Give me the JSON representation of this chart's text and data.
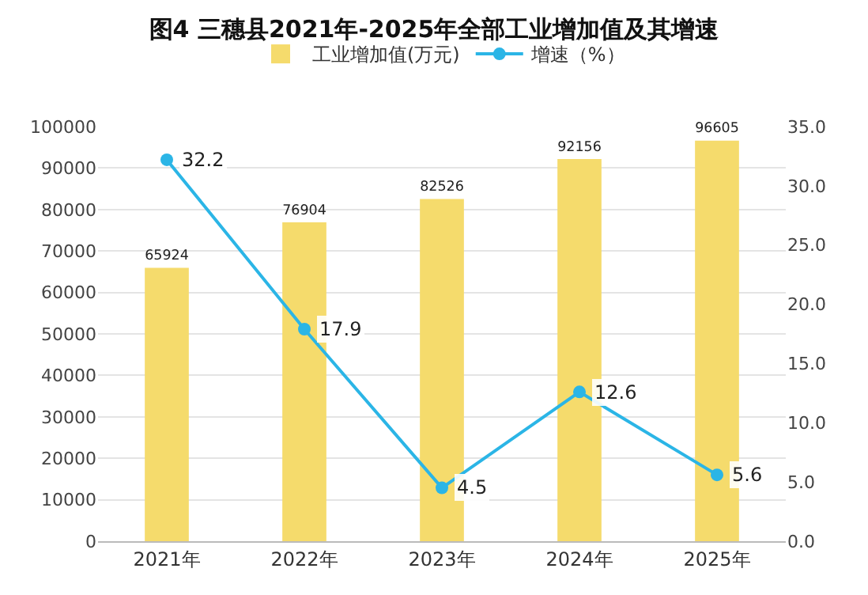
{
  "chart_data": {
    "type": "bar",
    "title": "图4 三穗县2021年-2025年全部工业增加值及其增速",
    "categories": [
      "2021年",
      "2022年",
      "2023年",
      "2024年",
      "2025年"
    ],
    "series": [
      {
        "name": "工业增加值(万元)",
        "color": "#f5db6c",
        "values": [
          65924,
          76904,
          82526,
          92156,
          96605
        ]
      },
      {
        "name": "增速（%）",
        "type": "line",
        "axis": "y2",
        "color": "#2bb5e6",
        "values": [
          32.2,
          17.9,
          4.5,
          12.6,
          5.6
        ]
      }
    ],
    "ylim": [
      0,
      100000
    ],
    "yticks": [
      0,
      10000,
      20000,
      30000,
      40000,
      50000,
      60000,
      70000,
      80000,
      90000,
      100000
    ],
    "y2lim": [
      0,
      35
    ],
    "y2ticks": [
      {
        "value": 0,
        "label": "0.0"
      },
      {
        "value": 5,
        "label": "5.0"
      },
      {
        "value": 10,
        "label": "10.0"
      },
      {
        "value": 15,
        "label": "15.0"
      },
      {
        "value": 20,
        "label": "20.0"
      },
      {
        "value": 25,
        "label": "25.0"
      },
      {
        "value": 30,
        "label": "30.0"
      },
      {
        "value": 35,
        "label": "35.0"
      }
    ],
    "grid": "y",
    "legend": "top",
    "marker": "circle",
    "line_style": "solid",
    "data_labels": true
  }
}
